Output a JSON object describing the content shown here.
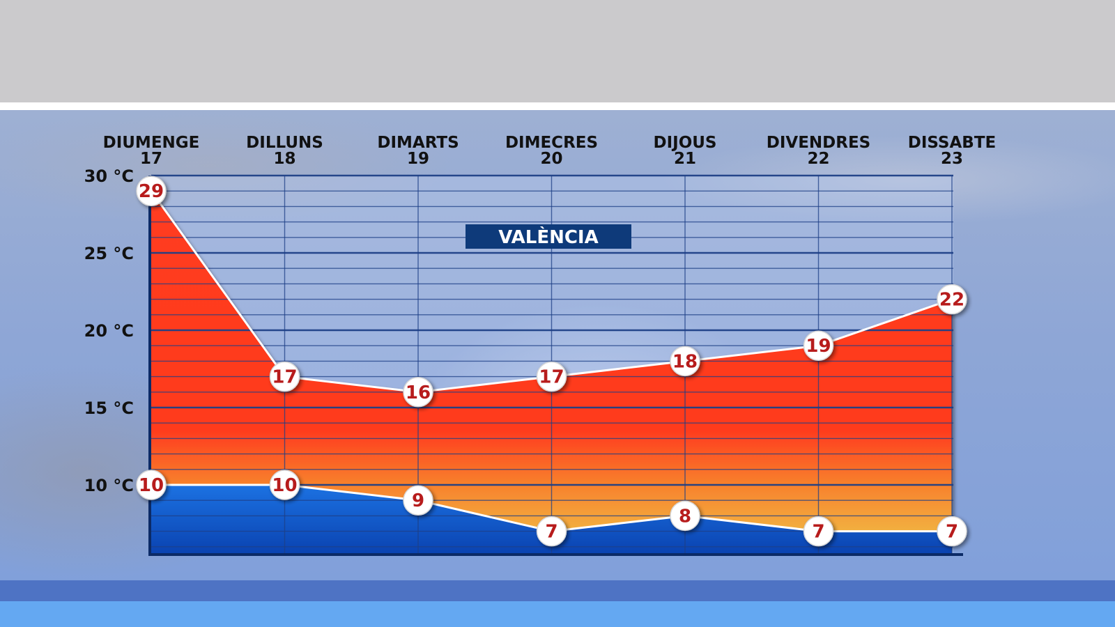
{
  "chart_data": {
    "type": "area",
    "title": "VALÈNCIA",
    "categories": [
      {
        "day": "DIUMENGE",
        "date": "17"
      },
      {
        "day": "DILLUNS",
        "date": "18"
      },
      {
        "day": "DIMARTS",
        "date": "19"
      },
      {
        "day": "DIMECRES",
        "date": "20"
      },
      {
        "day": "DIJOUS",
        "date": "21"
      },
      {
        "day": "DIVENDRES",
        "date": "22"
      },
      {
        "day": "DISSABTE",
        "date": "23"
      }
    ],
    "series": [
      {
        "values": [
          29,
          17,
          16,
          17,
          18,
          19,
          22
        ],
        "color": "#ff3b1f"
      },
      {
        "values": [
          10,
          10,
          9,
          7,
          8,
          7,
          7
        ],
        "color": "#1565d8"
      }
    ],
    "y_ticks": [
      {
        "value": 30,
        "label": "30 °C"
      },
      {
        "value": 25,
        "label": "25 °C"
      },
      {
        "value": 20,
        "label": "20 °C"
      },
      {
        "value": 15,
        "label": "15 °C"
      },
      {
        "value": 10,
        "label": "10 °C"
      }
    ],
    "ylim": [
      5.5,
      30
    ],
    "grid": true,
    "colors": {
      "grid": "#1d3f86",
      "title_box": "#0e3a7a",
      "point_label": "#b71c1c",
      "warm_top": "#ff3b1f",
      "warm_bottom": "#f5a13a",
      "cold_top": "#1a6fe0",
      "cold_bottom": "#0b47b8"
    }
  }
}
